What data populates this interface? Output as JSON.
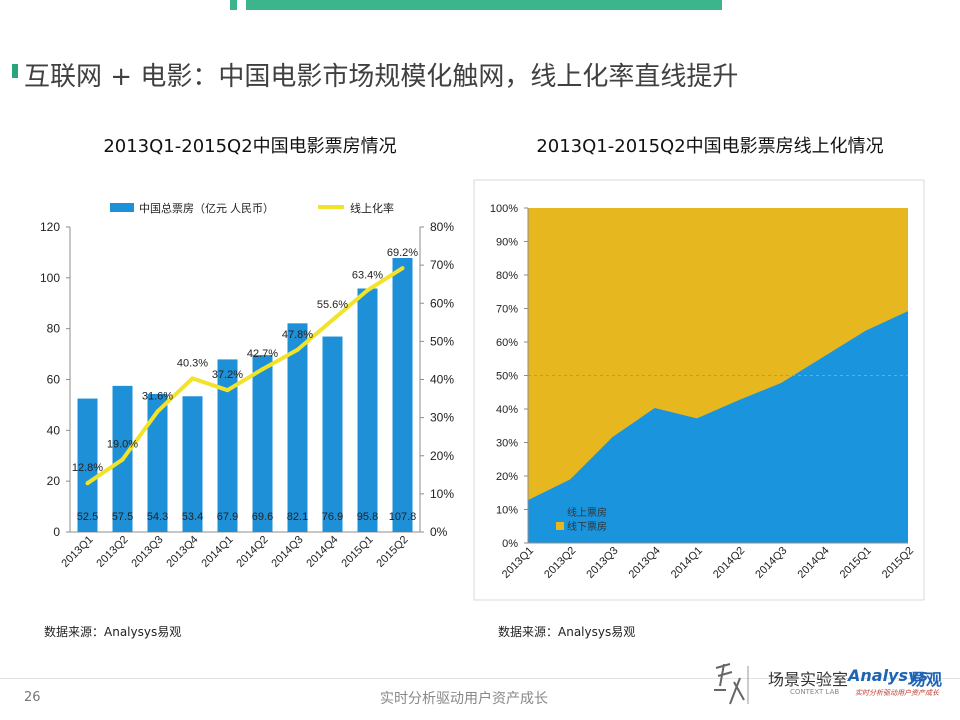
{
  "slide": {
    "title": "互联网 + 电影：中国电影市场规模化触网，线上化率直线提升",
    "page_number": "26",
    "tagline": "实时分析驱动用户资产成长",
    "logo": {
      "brand_cn": "场景实验室",
      "brand_en": "Analysys",
      "brand_cn2": "易观",
      "sub": "CONTEXT LAB",
      "slogan": "实时分析驱动用户资产成长"
    },
    "colors": {
      "accent_green": "#3cb48c",
      "bar_blue": "#1e90d8",
      "line_yellow": "#f2e32a",
      "area_blue": "#1a95dd",
      "area_gold": "#e6b71e"
    }
  },
  "chart_data": [
    {
      "type": "bar",
      "title": "2013Q1-2015Q2中国电影票房情况",
      "source": "数据来源：Analysys易观",
      "categories": [
        "2013Q1",
        "2013Q2",
        "2013Q3",
        "2013Q4",
        "2014Q1",
        "2014Q2",
        "2014Q3",
        "2014Q4",
        "2015Q1",
        "2015Q2"
      ],
      "series": [
        {
          "name": "中国总票房（亿元 人民币）",
          "type": "bar",
          "axis": "left",
          "values": [
            52.5,
            57.5,
            54.3,
            53.4,
            67.9,
            69.6,
            82.1,
            76.9,
            95.8,
            107.8
          ],
          "value_labels": [
            "52.5",
            "57.5",
            "54.3",
            "53.4",
            "67.9",
            "69.6",
            "82.1",
            "76.9",
            "95.8",
            "107.8"
          ]
        },
        {
          "name": "线上化率",
          "type": "line",
          "axis": "right",
          "values": [
            12.8,
            19.0,
            31.6,
            40.3,
            37.2,
            42.7,
            47.8,
            55.6,
            63.4,
            69.2
          ],
          "value_labels": [
            "12.8%",
            "19.0%",
            "31.6%",
            "40.3%",
            "37.2%",
            "42.7%",
            "47.8%",
            "55.6%",
            "63.4%",
            "69.2%"
          ]
        }
      ],
      "ylim": [
        0,
        120
      ],
      "y_ticks": [
        "0",
        "20",
        "40",
        "60",
        "80",
        "100",
        "120"
      ],
      "y2lim": [
        0,
        80
      ],
      "y2_ticks": [
        "0%",
        "10%",
        "20%",
        "30%",
        "40%",
        "50%",
        "60%",
        "70%",
        "80%"
      ],
      "legend": "top",
      "grid": false
    },
    {
      "type": "area",
      "title": "2013Q1-2015Q2中国电影票房线上化情况",
      "source": "数据来源：Analysys易观",
      "categories": [
        "2013Q1",
        "2013Q2",
        "2013Q3",
        "2013Q4",
        "2014Q1",
        "2014Q2",
        "2014Q3",
        "2014Q4",
        "2015Q1",
        "2015Q2"
      ],
      "stacked_percent": true,
      "series": [
        {
          "name": "线上票房",
          "values": [
            12.8,
            19.0,
            31.6,
            40.3,
            37.2,
            42.7,
            47.8,
            55.6,
            63.4,
            69.2
          ]
        },
        {
          "name": "线下票房",
          "values": [
            87.2,
            81.0,
            68.4,
            59.7,
            62.8,
            57.3,
            52.2,
            44.4,
            36.6,
            30.8
          ]
        }
      ],
      "ylim": [
        0,
        100
      ],
      "y_ticks": [
        "0%",
        "10%",
        "20%",
        "30%",
        "40%",
        "50%",
        "60%",
        "70%",
        "80%",
        "90%",
        "100%"
      ],
      "legend": "bottom-left",
      "grid": false
    }
  ]
}
